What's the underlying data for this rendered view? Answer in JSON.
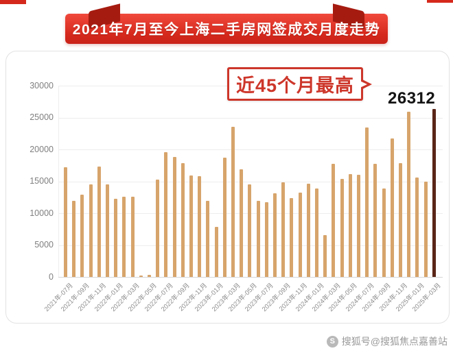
{
  "page": {
    "title_banner": "2021年7月至今上海二手房网签成交月度走势"
  },
  "annotation": {
    "label": "近45个月最高",
    "value": "26312"
  },
  "watermark": {
    "icon": "sohu-logo",
    "icon_letter": "S",
    "text": "搜狐号@搜狐焦点嘉善站"
  },
  "colors": {
    "banner_red": "#d5281c",
    "banner_fold_red": "#a61b10",
    "annotation_red": "#cd362a",
    "bar": "#d7a46b",
    "bar_highlight": "#5a2517",
    "axis_text": "#7f7f7f",
    "gridline": "#ededed"
  },
  "chart_data": {
    "type": "bar",
    "title": "2021年7月至今上海二手房网签成交月度走势",
    "x": [
      "2021-07",
      "2021-08",
      "2021-09",
      "2021-10",
      "2021-11",
      "2021-12",
      "2022-01",
      "2022-02",
      "2022-03",
      "2022-04",
      "2022-05",
      "2022-06",
      "2022-07",
      "2022-08",
      "2022-09",
      "2022-10",
      "2022-11",
      "2022-12",
      "2023-01",
      "2023-02",
      "2023-03",
      "2023-04",
      "2023-05",
      "2023-06",
      "2023-07",
      "2023-08",
      "2023-09",
      "2023-10",
      "2023-11",
      "2023-12",
      "2024-01",
      "2024-02",
      "2024-03",
      "2024-04",
      "2024-05",
      "2024-06",
      "2024-07",
      "2024-08",
      "2024-09",
      "2024-10",
      "2024-11",
      "2024-12",
      "2025-01",
      "2025-02",
      "2025-03"
    ],
    "values": [
      17200,
      11900,
      12900,
      14500,
      17300,
      14500,
      12300,
      12600,
      12600,
      200,
      300,
      15300,
      19600,
      18800,
      17900,
      15900,
      15800,
      11900,
      7800,
      18700,
      23600,
      16900,
      14500,
      11900,
      11700,
      13100,
      14800,
      12400,
      13200,
      14600,
      13900,
      6600,
      17700,
      15400,
      16100,
      16000,
      23400,
      17700,
      13900,
      21700,
      17900,
      25900,
      15600,
      14900,
      26312
    ],
    "x_tick_labels": [
      "2021年-07月",
      "2021年-09月",
      "2021年-11月",
      "2022年-01月",
      "2022年-03月",
      "2022年-05月",
      "2022年-07月",
      "2022年-09月",
      "2022年-11月",
      "2023年-01月",
      "2023年-03月",
      "2023年-05月",
      "2023年-07月",
      "2023年-09月",
      "2023年-11月",
      "2024年-01月",
      "2024年-03月",
      "2024年-05月",
      "2024年-07月",
      "2024年-09月",
      "2024年-11月",
      "2025年-01月",
      "2025年-03月"
    ],
    "x_tick_every": 2,
    "y_ticks": [
      0,
      5000,
      10000,
      15000,
      20000,
      25000,
      30000
    ],
    "ylim": [
      0,
      30000
    ],
    "grid": true,
    "legend": false,
    "bar_color": "#d7a46b",
    "highlight_index": 44,
    "highlight_color": "#5a2517",
    "highlight_value_label": "26312"
  }
}
